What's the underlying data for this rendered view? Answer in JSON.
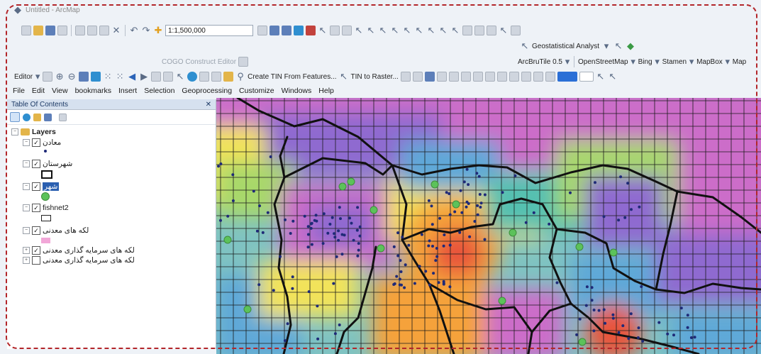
{
  "window": {
    "title": "Untitled - ArcMap"
  },
  "standard_toolbar": {
    "scale_value": "1:1,500,000"
  },
  "geostat_toolbar": {
    "label": "Geostatistical Analyst"
  },
  "basemap_toolbar": {
    "items": [
      "ArcBruTile 0.5",
      "OpenStreetMap",
      "Bing",
      "Stamen",
      "MapBox",
      "Map"
    ]
  },
  "cogo_toolbar": {
    "label": "COGO Construct Editor"
  },
  "editor_toolbar": {
    "editor_label": "Editor",
    "create_tin_label": "Create TIN From Features...",
    "tin_to_raster_label": "TIN to Raster..."
  },
  "menu": {
    "items": [
      "File",
      "Edit",
      "View",
      "bookmarks",
      "Insert",
      "Selection",
      "Geoprocessing",
      "Customize",
      "Windows",
      "Help"
    ]
  },
  "toc": {
    "title": "Table Of Contents",
    "pin_glyph": "✕",
    "root_label": "Layers",
    "layers": [
      {
        "label": "معادن",
        "symbol": "point",
        "checked": true
      },
      {
        "label": "شهرستان",
        "symbol": "polygon-outline",
        "checked": true
      },
      {
        "label": "شهر",
        "symbol": "green-point",
        "checked": true,
        "selected": true
      },
      {
        "label": "fishnet2",
        "symbol": "hollow-rect",
        "checked": true
      },
      {
        "label": "لکه های معدنی",
        "symbol": "pink-rect",
        "checked": true
      },
      {
        "label": "لکه های سرمایه گذاری معدنی",
        "symbol": "none",
        "checked": true
      },
      {
        "label": "لکه های سرمایه گذاری معدنی",
        "symbol": "none",
        "checked": false
      }
    ]
  },
  "colors": {
    "accent_frame": "#b3262a",
    "toc_header": "#d6e1ef",
    "selected_layer": "#2a5fb0",
    "map_palette": [
      "#cc6dc9",
      "#8f6bd0",
      "#5fa8d8",
      "#54c0b0",
      "#a8d86a",
      "#f2e35a",
      "#f5a23a",
      "#e8553a"
    ]
  }
}
